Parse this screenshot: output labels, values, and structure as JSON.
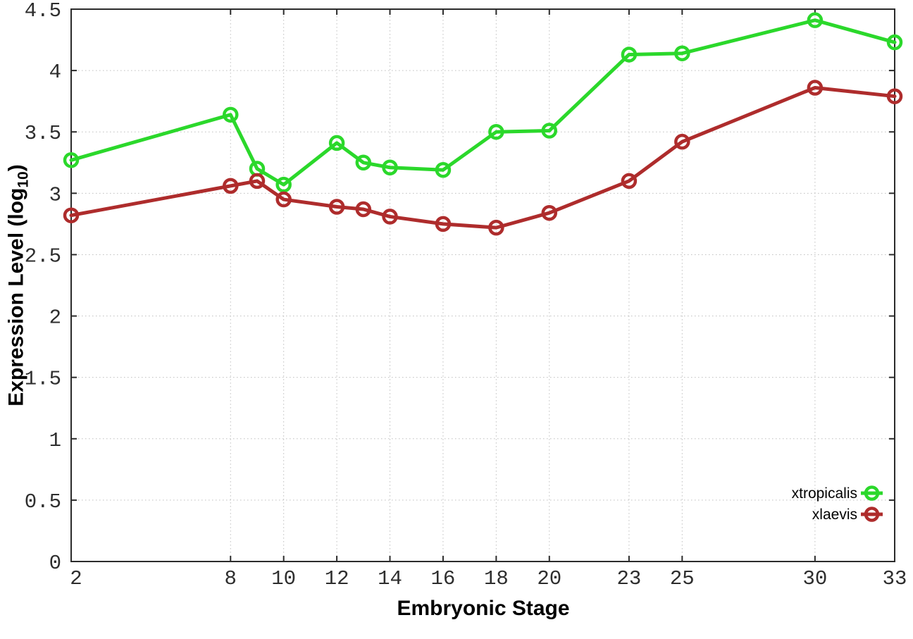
{
  "figure": {
    "background": "#ffffff",
    "border_color": "#2b2b2b",
    "grid_color": "#bfbfbf",
    "tick_label_color": "#2e2e2e",
    "legend_text_color": "#000000"
  },
  "chart_data": {
    "type": "line",
    "title": "",
    "xlabel": "Embryonic Stage",
    "ylabel": {
      "main": "Expression Level (log",
      "sub": "10",
      "end": ")"
    },
    "xlim": [
      2,
      33
    ],
    "ylim": [
      0,
      4.5
    ],
    "grid": true,
    "legend_position": "inside-bottom-right",
    "x": [
      2,
      8,
      9,
      10,
      12,
      13,
      14,
      16,
      18,
      20,
      23,
      25,
      30,
      33
    ],
    "xticks": [
      2,
      8,
      10,
      12,
      14,
      16,
      18,
      20,
      23,
      25,
      30,
      33
    ],
    "yticks": [
      0,
      0.5,
      1,
      1.5,
      2,
      2.5,
      3,
      3.5,
      4,
      4.5
    ],
    "series": [
      {
        "name": "xtropicalis",
        "color": "#2bd82b",
        "marker": "open-circle",
        "values": [
          3.27,
          3.64,
          3.2,
          3.07,
          3.41,
          3.25,
          3.21,
          3.19,
          3.5,
          3.51,
          4.13,
          4.14,
          4.41,
          4.23
        ]
      },
      {
        "name": "xlaevis",
        "color": "#ae2c2c",
        "marker": "open-circle",
        "values": [
          2.82,
          3.06,
          3.1,
          2.95,
          2.89,
          2.87,
          2.81,
          2.75,
          2.72,
          2.84,
          3.1,
          3.42,
          3.86,
          3.79
        ]
      }
    ]
  }
}
